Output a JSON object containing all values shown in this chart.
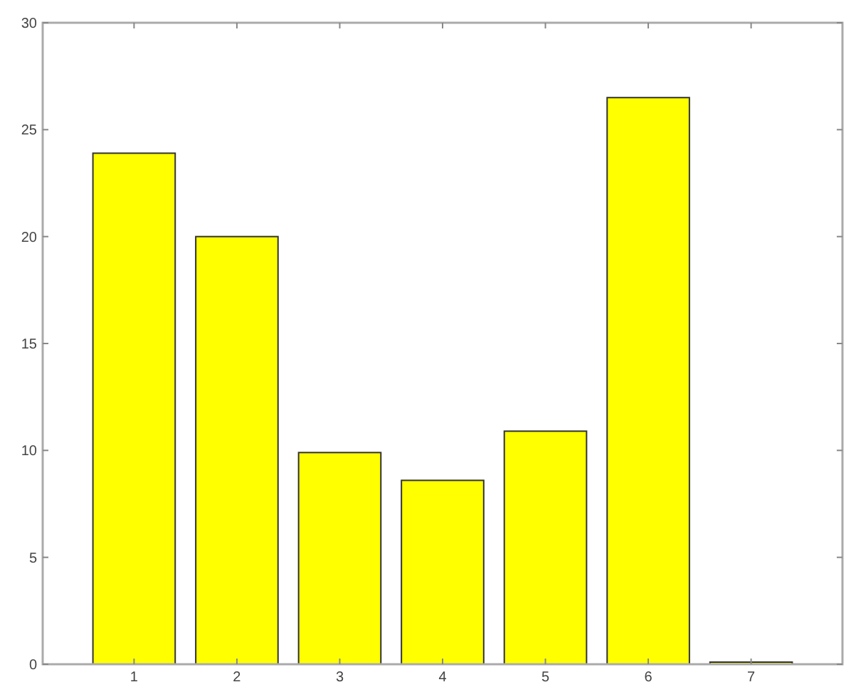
{
  "chart_data": {
    "type": "bar",
    "categories": [
      "1",
      "2",
      "3",
      "4",
      "5",
      "6",
      "7"
    ],
    "values": [
      23.9,
      20,
      9.9,
      8.6,
      10.9,
      26.5,
      0.1
    ],
    "color": "#ffff00",
    "ylim": [
      0,
      30
    ],
    "yticks": [
      0,
      5,
      10,
      15,
      20,
      25,
      30
    ],
    "grid": false
  }
}
